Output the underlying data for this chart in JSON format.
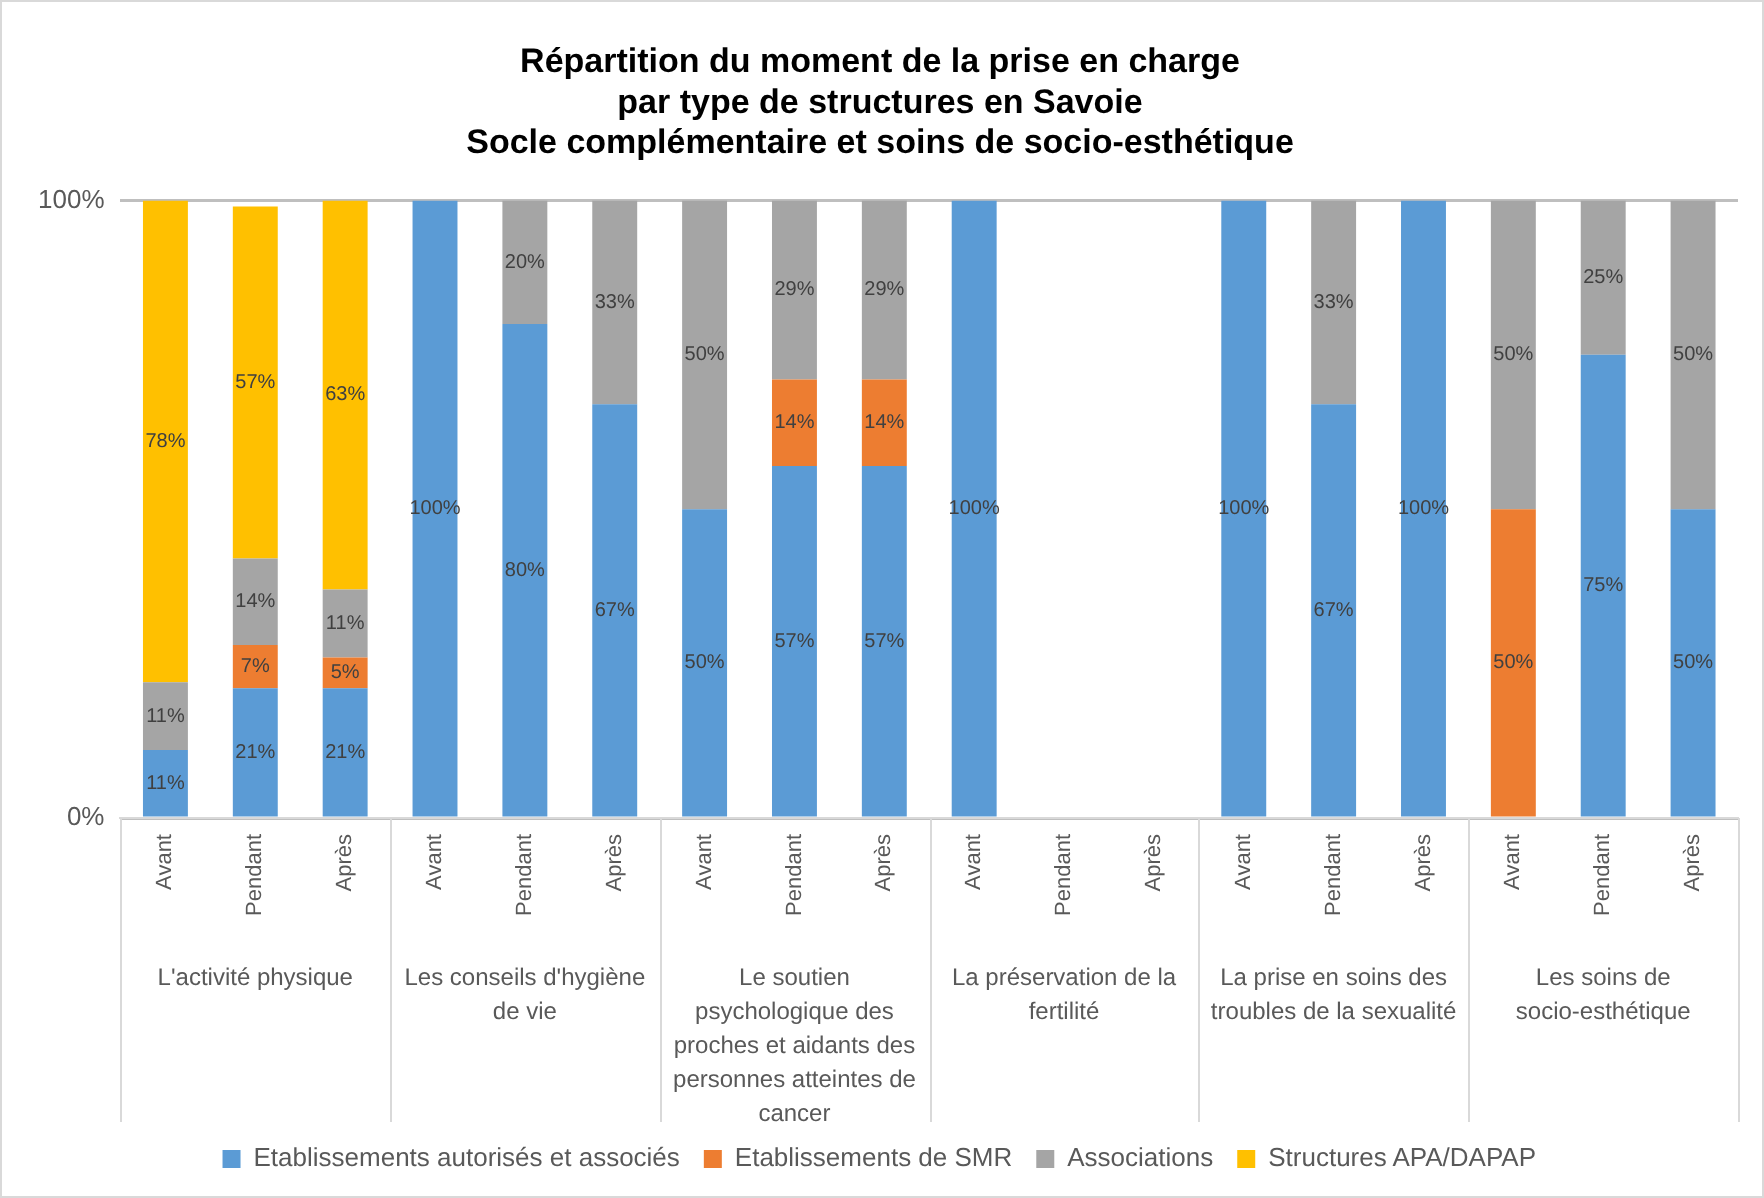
{
  "chart_data": {
    "type": "bar",
    "stacked": true,
    "title": [
      "Répartition du moment de la prise en charge",
      "par type de structures en Savoie",
      "Socle complémentaire et soins de socio-esthétique"
    ],
    "categories": [
      "Avant",
      "Pendant",
      "Après",
      "Avant",
      "Pendant",
      "Après",
      "Avant",
      "Pendant",
      "Après",
      "Avant",
      "Pendant",
      "Après",
      "Avant",
      "Pendant",
      "Après",
      "Avant",
      "Pendant",
      "Après"
    ],
    "annotations": [
      "L'activité physique",
      "Les conseils d'hygiène de vie",
      "Le soutien psychologique des proches et aidants des personnes atteintes de cancer",
      "La préservation de la fertilité",
      "La prise en soins des troubles de la sexualité",
      "Les soins de socio-esthétique"
    ],
    "ylim": [
      0,
      100
    ],
    "yticks": [
      {
        "value": 0,
        "label": "0%"
      },
      {
        "value": 100,
        "label": "100%"
      }
    ],
    "grid": "y",
    "legend": "bottom",
    "series": [
      {
        "name": "Etablissements autorisés et associés",
        "color": "#5b9bd5",
        "values": [
          11,
          21,
          21,
          100,
          80,
          67,
          50,
          57,
          57,
          100,
          null,
          null,
          100,
          67,
          100,
          null,
          75,
          50
        ],
        "value_labels": [
          "11%",
          "21%",
          "21%",
          "100%",
          "80%",
          "67%",
          "50%",
          "57%",
          "57%",
          "100%",
          null,
          null,
          "100%",
          "67%",
          "100%",
          null,
          "75%",
          "50%"
        ]
      },
      {
        "name": "Etablissements de SMR",
        "color": "#ed7d31",
        "values": [
          null,
          7,
          5,
          null,
          null,
          null,
          null,
          14,
          14,
          null,
          null,
          null,
          null,
          null,
          null,
          50,
          null,
          null
        ],
        "value_labels": [
          null,
          "7%",
          "5%",
          null,
          null,
          null,
          null,
          "14%",
          "14%",
          null,
          null,
          null,
          null,
          null,
          null,
          "50%",
          null,
          null
        ]
      },
      {
        "name": "Associations",
        "color": "#a5a5a5",
        "values": [
          11,
          14,
          11,
          null,
          20,
          33,
          50,
          29,
          29,
          null,
          null,
          null,
          null,
          33,
          null,
          50,
          25,
          50
        ],
        "value_labels": [
          "11%",
          "14%",
          "11%",
          null,
          "20%",
          "33%",
          "50%",
          "29%",
          "29%",
          null,
          null,
          null,
          null,
          "33%",
          null,
          "50%",
          "25%",
          "50%"
        ]
      },
      {
        "name": "Structures APA/DAPAP",
        "color": "#ffc000",
        "values": [
          78,
          57,
          63,
          null,
          null,
          null,
          null,
          null,
          null,
          null,
          null,
          null,
          null,
          null,
          null,
          null,
          null,
          null
        ],
        "value_labels": [
          "78%",
          "57%",
          "63%",
          null,
          null,
          null,
          null,
          null,
          null,
          null,
          null,
          null,
          null,
          null,
          null,
          null,
          null,
          null
        ]
      }
    ]
  }
}
